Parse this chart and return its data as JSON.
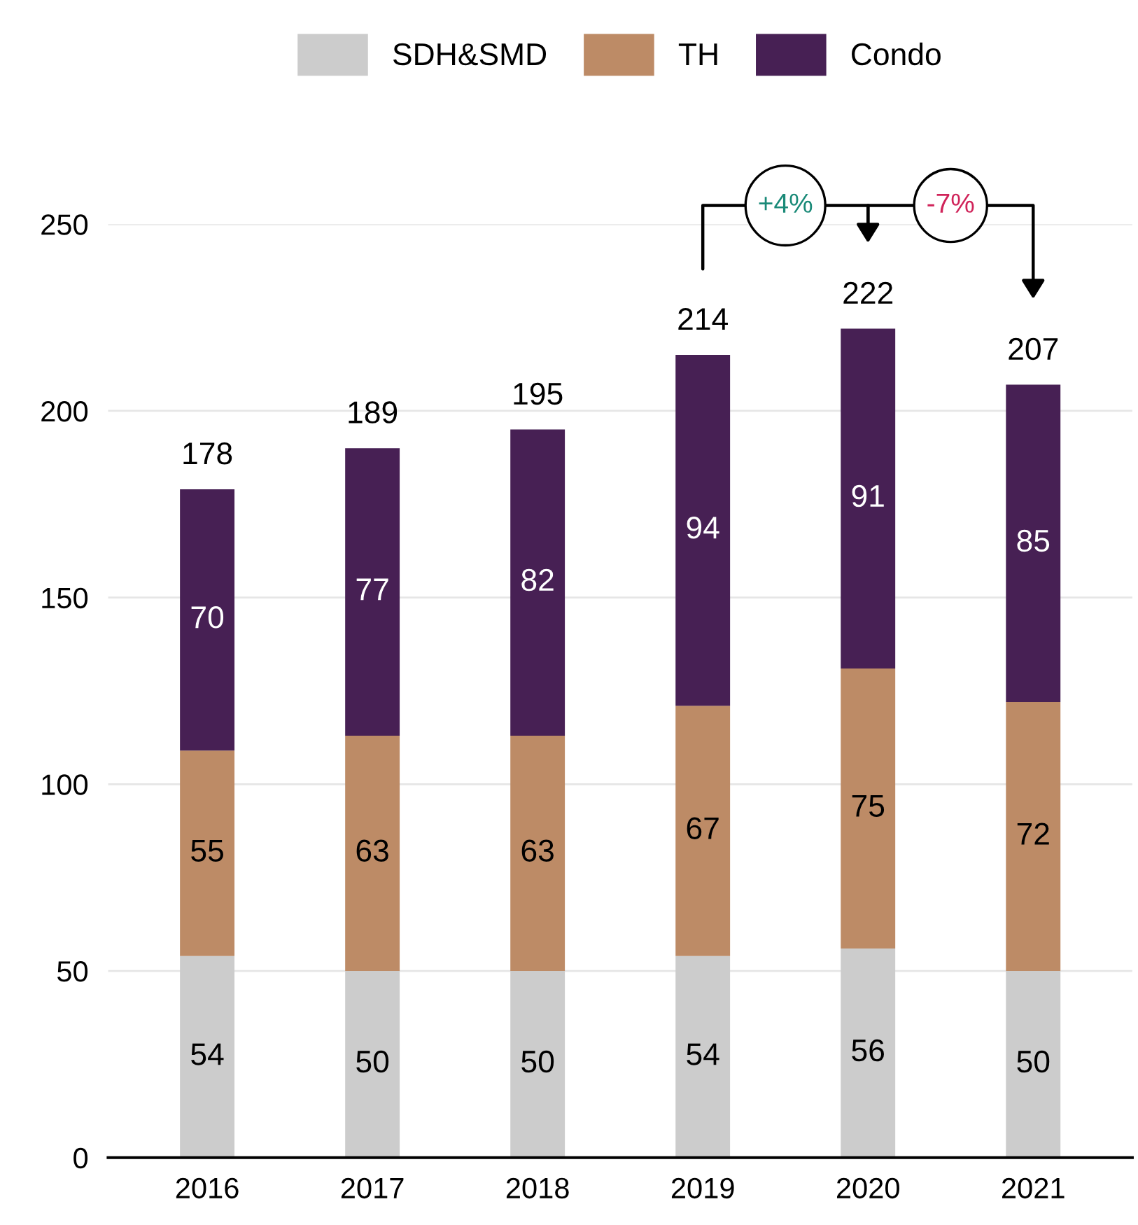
{
  "chart_data": {
    "type": "bar",
    "stacked": true,
    "categories": [
      "2016",
      "2017",
      "2018",
      "2019",
      "2020",
      "2021"
    ],
    "series": [
      {
        "name": "SDH&SMD",
        "color": "#cccccc",
        "values": [
          54,
          50,
          50,
          54,
          56,
          50
        ]
      },
      {
        "name": "TH",
        "color": "#bd8b66",
        "values": [
          55,
          63,
          63,
          67,
          75,
          72
        ]
      },
      {
        "name": "Condo",
        "color": "#472054",
        "values": [
          70,
          77,
          82,
          94,
          91,
          85
        ]
      }
    ],
    "totals": [
      "178",
      "189",
      "195",
      "214",
      "222",
      "207"
    ],
    "data_labels": true,
    "annotations": [
      "+4%",
      "-7%"
    ],
    "ylim": [
      0,
      250
    ],
    "yticks": [
      0,
      50,
      100,
      150,
      200,
      250
    ],
    "grid": "y",
    "legend": "top"
  }
}
